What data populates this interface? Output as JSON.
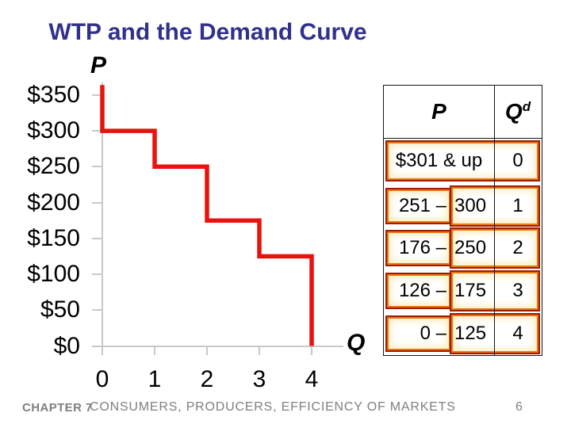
{
  "title": "WTP and the Demand Curve",
  "colors": {
    "curve_red": "#e8120e",
    "title_navy": "#31318c",
    "highlight_border_dark": "#9e1b00",
    "highlight_border_orange": "#e8750e",
    "axis_gray": "#c9c9c9",
    "footer_gray": "#7f7f7f"
  },
  "chart_data": {
    "type": "line",
    "subtype": "step-function demand curve",
    "title": "",
    "xlabel": "Q",
    "ylabel": "P",
    "xlim": [
      0,
      4.6
    ],
    "ylim": [
      0,
      365
    ],
    "grid": false,
    "x_axis": {
      "label": "Q",
      "ticks": [
        0,
        1,
        2,
        3,
        4
      ]
    },
    "y_axis": {
      "label": "P",
      "ticks": [
        {
          "label": "$350",
          "value": 350
        },
        {
          "label": "$300",
          "value": 300
        },
        {
          "label": "$250",
          "value": 250
        },
        {
          "label": "$200",
          "value": 200
        },
        {
          "label": "$150",
          "value": 150
        },
        {
          "label": "$100",
          "value": 100
        },
        {
          "label": "$50",
          "value": 50
        },
        {
          "label": "$0",
          "value": 0
        }
      ]
    },
    "series": [
      {
        "name": "demand curve (willingness to pay steps)",
        "color": "#e8120e",
        "points": [
          [
            0,
            364
          ],
          [
            0,
            300
          ],
          [
            1,
            300
          ],
          [
            1,
            250
          ],
          [
            2,
            250
          ],
          [
            2,
            175
          ],
          [
            3,
            175
          ],
          [
            3,
            125
          ],
          [
            4,
            125
          ],
          [
            4,
            0
          ]
        ]
      }
    ]
  },
  "table": {
    "header": {
      "p": "P",
      "q": "Q",
      "q_sup": "d"
    },
    "rows": [
      {
        "range_low": "$301 & up",
        "range_high": "",
        "qd": "0"
      },
      {
        "range_low": "251 –",
        "range_high": "300",
        "qd": "1"
      },
      {
        "range_low": "176 –",
        "range_high": "250",
        "qd": "2"
      },
      {
        "range_low": "126 –",
        "range_high": "175",
        "qd": "3"
      },
      {
        "range_low": "0 –",
        "range_high": "125",
        "qd": "4"
      }
    ]
  },
  "footer": {
    "chapter": "CHAPTER 7",
    "course": "CONSUMERS, PRODUCERS, EFFICIENCY OF MARKETS",
    "page": "6"
  }
}
